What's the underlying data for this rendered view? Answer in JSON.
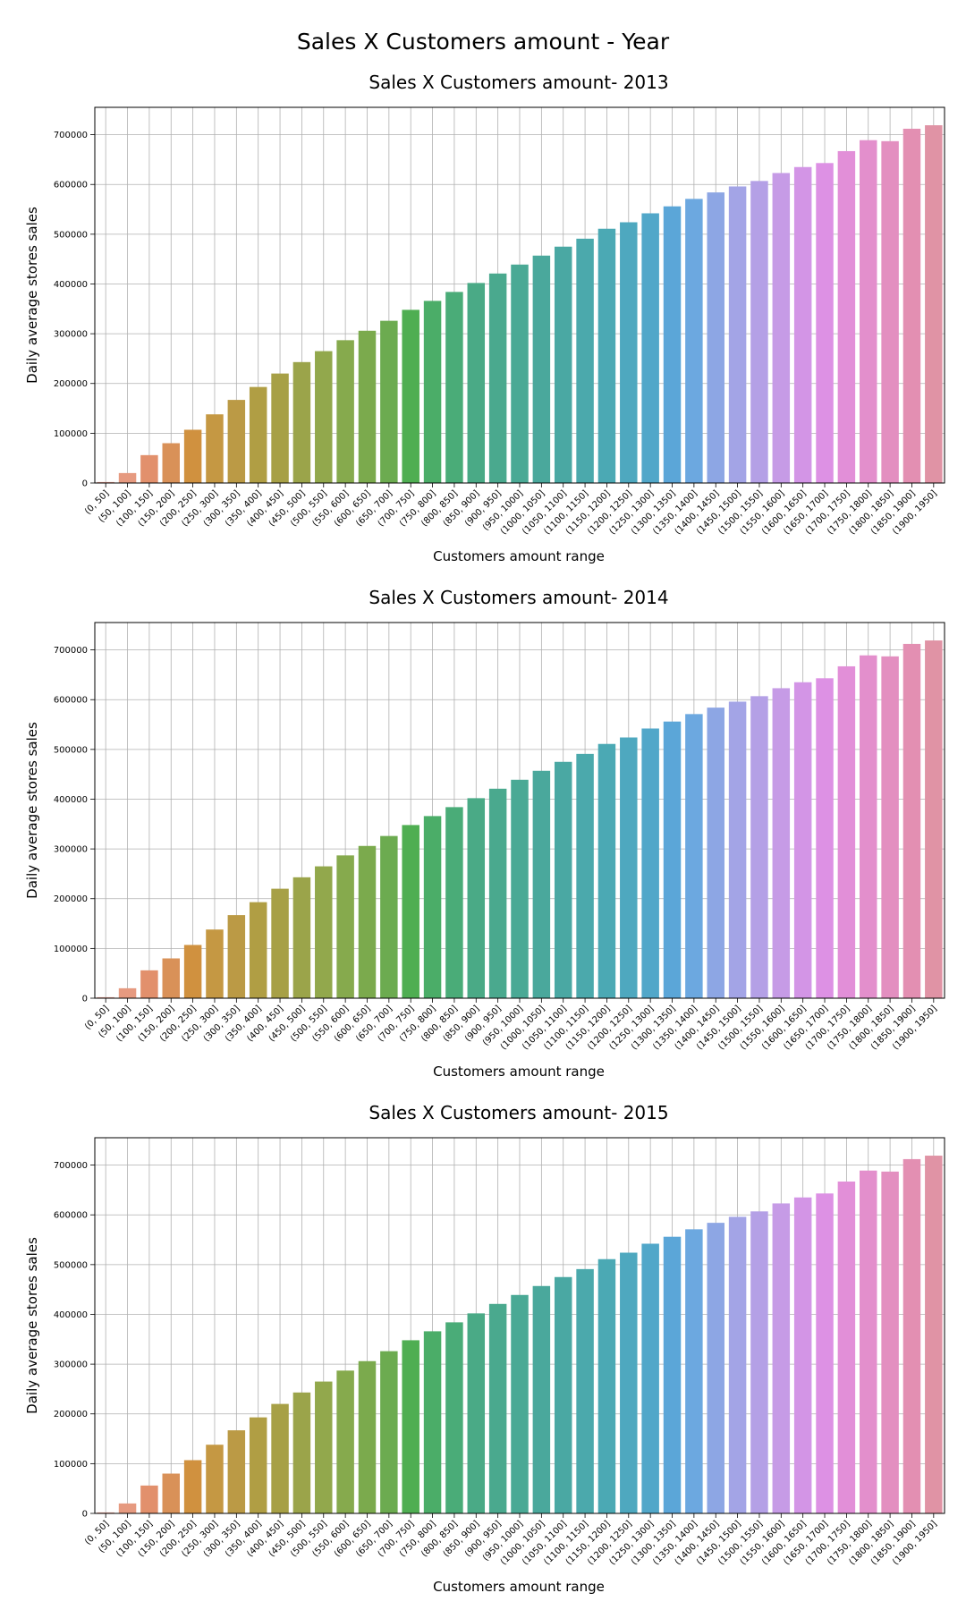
{
  "figure_title": "Sales X Customers amount - Year",
  "chart_data": [
    {
      "type": "bar",
      "title": "Sales X Customers amount- 2013",
      "xlabel": "Customers amount range",
      "ylabel": "Daily average stores sales",
      "ylim": [
        0,
        755000
      ],
      "yticks": [
        0,
        100000,
        200000,
        300000,
        400000,
        500000,
        600000,
        700000
      ],
      "grid": true,
      "categories": [
        "(0, 50]",
        "(50, 100]",
        "(100, 150]",
        "(150, 200]",
        "(200, 250]",
        "(250, 300]",
        "(300, 350]",
        "(350, 400]",
        "(400, 450]",
        "(450, 500]",
        "(500, 550]",
        "(550, 600]",
        "(600, 650]",
        "(650, 700]",
        "(700, 750]",
        "(750, 800]",
        "(800, 850]",
        "(850, 900]",
        "(900, 950]",
        "(950, 1000]",
        "(1000, 1050]",
        "(1050, 1100]",
        "(1100, 1150]",
        "(1150, 1200]",
        "(1200, 1250]",
        "(1250, 1300]",
        "(1300, 1350]",
        "(1350, 1400]",
        "(1400, 1450]",
        "(1450, 1500]",
        "(1500, 1550]",
        "(1550, 1600]",
        "(1600, 1650]",
        "(1650, 1700]",
        "(1700, 1750]",
        "(1750, 1800]",
        "(1800, 1850]",
        "(1850, 1900]",
        "(1900, 1950]"
      ],
      "values": [
        2000,
        20000,
        56000,
        80000,
        107000,
        138000,
        167000,
        193000,
        220000,
        243000,
        265000,
        287000,
        306000,
        326000,
        348000,
        366000,
        384000,
        402000,
        421000,
        439000,
        457000,
        475000,
        491000,
        511000,
        524000,
        542000,
        556000,
        571000,
        584000,
        596000,
        607000,
        623000,
        635000,
        643000,
        667000,
        689000,
        687000,
        712000,
        719000
      ],
      "colors": [
        "#e8a093",
        "#e69a80",
        "#e2906c",
        "#d99158",
        "#d0913f",
        "#c59843",
        "#bb9a45",
        "#b09e44",
        "#a7a046",
        "#9ba44a",
        "#92a84c",
        "#86aa4d",
        "#7baa4d",
        "#6cab50",
        "#4fae52",
        "#4bad68",
        "#4aac78",
        "#4aaa86",
        "#4aa98e",
        "#4aa995",
        "#4aa89c",
        "#4aa8a3",
        "#4ba9ac",
        "#4ba9b4",
        "#4ea8bf",
        "#51a7c9",
        "#5ba6d8",
        "#6ca8e0",
        "#8da6e4",
        "#a3a4e6",
        "#b4a0e6",
        "#c69be6",
        "#d395e6",
        "#dd91e4",
        "#e28fd8",
        "#e38fcc",
        "#e38fc0",
        "#e38fb2",
        "#e093a5"
      ]
    },
    {
      "type": "bar",
      "title": "Sales X Customers amount- 2014",
      "xlabel": "Customers amount range",
      "ylabel": "Daily average stores sales",
      "ylim": [
        0,
        755000
      ],
      "yticks": [
        0,
        100000,
        200000,
        300000,
        400000,
        500000,
        600000,
        700000
      ],
      "grid": true,
      "categories": [
        "(0, 50]",
        "(50, 100]",
        "(100, 150]",
        "(150, 200]",
        "(200, 250]",
        "(250, 300]",
        "(300, 350]",
        "(350, 400]",
        "(400, 450]",
        "(450, 500]",
        "(500, 550]",
        "(550, 600]",
        "(600, 650]",
        "(650, 700]",
        "(700, 750]",
        "(750, 800]",
        "(800, 850]",
        "(850, 900]",
        "(900, 950]",
        "(950, 1000]",
        "(1000, 1050]",
        "(1050, 1100]",
        "(1100, 1150]",
        "(1150, 1200]",
        "(1200, 1250]",
        "(1250, 1300]",
        "(1300, 1350]",
        "(1350, 1400]",
        "(1400, 1450]",
        "(1450, 1500]",
        "(1500, 1550]",
        "(1550, 1600]",
        "(1600, 1650]",
        "(1650, 1700]",
        "(1700, 1750]",
        "(1750, 1800]",
        "(1800, 1850]",
        "(1850, 1900]",
        "(1900, 1950]"
      ],
      "values": [
        2000,
        20000,
        56000,
        80000,
        107000,
        138000,
        167000,
        193000,
        220000,
        243000,
        265000,
        287000,
        306000,
        326000,
        348000,
        366000,
        384000,
        402000,
        421000,
        439000,
        457000,
        475000,
        491000,
        511000,
        524000,
        542000,
        556000,
        571000,
        584000,
        596000,
        607000,
        623000,
        635000,
        643000,
        667000,
        689000,
        687000,
        712000,
        719000
      ],
      "colors": [
        "#e8a093",
        "#e69a80",
        "#e2906c",
        "#d99158",
        "#d0913f",
        "#c59843",
        "#bb9a45",
        "#b09e44",
        "#a7a046",
        "#9ba44a",
        "#92a84c",
        "#86aa4d",
        "#7baa4d",
        "#6cab50",
        "#4fae52",
        "#4bad68",
        "#4aac78",
        "#4aaa86",
        "#4aa98e",
        "#4aa995",
        "#4aa89c",
        "#4aa8a3",
        "#4ba9ac",
        "#4ba9b4",
        "#4ea8bf",
        "#51a7c9",
        "#5ba6d8",
        "#6ca8e0",
        "#8da6e4",
        "#a3a4e6",
        "#b4a0e6",
        "#c69be6",
        "#d395e6",
        "#dd91e4",
        "#e28fd8",
        "#e38fcc",
        "#e38fc0",
        "#e38fb2",
        "#e093a5"
      ]
    },
    {
      "type": "bar",
      "title": "Sales X Customers amount- 2015",
      "xlabel": "Customers amount range",
      "ylabel": "Daily average stores sales",
      "ylim": [
        0,
        755000
      ],
      "yticks": [
        0,
        100000,
        200000,
        300000,
        400000,
        500000,
        600000,
        700000
      ],
      "grid": true,
      "categories": [
        "(0, 50]",
        "(50, 100]",
        "(100, 150]",
        "(150, 200]",
        "(200, 250]",
        "(250, 300]",
        "(300, 350]",
        "(350, 400]",
        "(400, 450]",
        "(450, 500]",
        "(500, 550]",
        "(550, 600]",
        "(600, 650]",
        "(650, 700]",
        "(700, 750]",
        "(750, 800]",
        "(800, 850]",
        "(850, 900]",
        "(900, 950]",
        "(950, 1000]",
        "(1000, 1050]",
        "(1050, 1100]",
        "(1100, 1150]",
        "(1150, 1200]",
        "(1200, 1250]",
        "(1250, 1300]",
        "(1300, 1350]",
        "(1350, 1400]",
        "(1400, 1450]",
        "(1450, 1500]",
        "(1500, 1550]",
        "(1550, 1600]",
        "(1600, 1650]",
        "(1650, 1700]",
        "(1700, 1750]",
        "(1750, 1800]",
        "(1800, 1850]",
        "(1850, 1900]",
        "(1900, 1950]"
      ],
      "values": [
        2000,
        20000,
        56000,
        80000,
        107000,
        138000,
        167000,
        193000,
        220000,
        243000,
        265000,
        287000,
        306000,
        326000,
        348000,
        366000,
        384000,
        402000,
        421000,
        439000,
        457000,
        475000,
        491000,
        511000,
        524000,
        542000,
        556000,
        571000,
        584000,
        596000,
        607000,
        623000,
        635000,
        643000,
        667000,
        689000,
        687000,
        712000,
        719000
      ],
      "colors": [
        "#e8a093",
        "#e69a80",
        "#e2906c",
        "#d99158",
        "#d0913f",
        "#c59843",
        "#bb9a45",
        "#b09e44",
        "#a7a046",
        "#9ba44a",
        "#92a84c",
        "#86aa4d",
        "#7baa4d",
        "#6cab50",
        "#4fae52",
        "#4bad68",
        "#4aac78",
        "#4aaa86",
        "#4aa98e",
        "#4aa995",
        "#4aa89c",
        "#4aa8a3",
        "#4ba9ac",
        "#4ba9b4",
        "#4ea8bf",
        "#51a7c9",
        "#5ba6d8",
        "#6ca8e0",
        "#8da6e4",
        "#a3a4e6",
        "#b4a0e6",
        "#c69be6",
        "#d395e6",
        "#dd91e4",
        "#e28fd8",
        "#e38fcc",
        "#e38fc0",
        "#e38fb2",
        "#e093a5"
      ]
    }
  ]
}
